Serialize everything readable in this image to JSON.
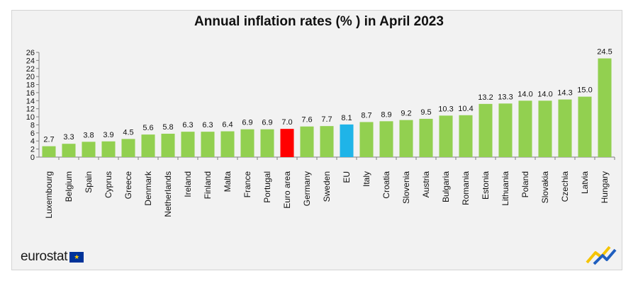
{
  "chart_data": {
    "type": "bar",
    "title": "Annual inflation rates (% ) in April 2023",
    "categories": [
      "Luxembourg",
      "Belgium",
      "Spain",
      "Cyprus",
      "Greece",
      "Denmark",
      "Netherlands",
      "Ireland",
      "Finland",
      "Malta",
      "France",
      "Portugal",
      "Euro area",
      "Germany",
      "Sweden",
      "EU",
      "Italy",
      "Croatia",
      "Slovenia",
      "Austria",
      "Bulgaria",
      "Romania",
      "Estonia",
      "Lithuania",
      "Poland",
      "Slovakia",
      "Czechia",
      "Latvia",
      "Hungary"
    ],
    "values": [
      2.7,
      3.3,
      3.8,
      3.9,
      4.5,
      5.6,
      5.8,
      6.3,
      6.3,
      6.4,
      6.9,
      6.9,
      7.0,
      7.6,
      7.7,
      8.1,
      8.7,
      8.9,
      9.2,
      9.5,
      10.3,
      10.4,
      13.2,
      13.3,
      14.0,
      14.0,
      14.3,
      15.0,
      24.5
    ],
    "value_labels": [
      "2.7",
      "3.3",
      "3.8",
      "3.9",
      "4.5",
      "5.6",
      "5.8",
      "6.3",
      "6.3",
      "6.4",
      "6.9",
      "6.9",
      "7.0",
      "7.6",
      "7.7",
      "8.1",
      "8.7",
      "8.9",
      "9.2",
      "9.5",
      "10.3",
      "10.4",
      "13.2",
      "13.3",
      "14.0",
      "14.0",
      "14.3",
      "15.0",
      "24.5"
    ],
    "ylim": [
      0,
      26
    ],
    "yticks": [
      "0",
      "2",
      "4",
      "6",
      "8",
      "10",
      "12",
      "14",
      "16",
      "18",
      "20",
      "22",
      "24",
      "26"
    ],
    "xlabel": "",
    "ylabel": "",
    "grid": false,
    "legend": "none",
    "colors": {
      "default": "#92d050",
      "Euro area": "#ff0000",
      "EU": "#1fb4e8"
    }
  },
  "branding": {
    "logo_text": "eurostat",
    "flag_star": "★"
  }
}
